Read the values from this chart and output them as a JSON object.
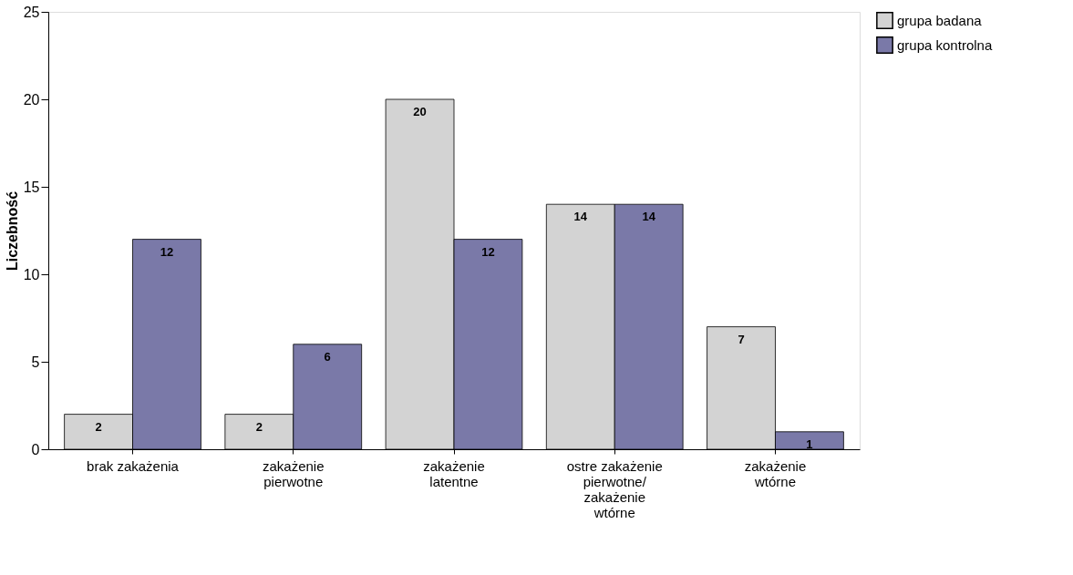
{
  "chart_data": {
    "type": "bar",
    "ylabel": "Liczebność",
    "categories": [
      "brak zakażenia",
      "zakażenie\npierwotne",
      "zakażenie\nlatentne",
      "ostre zakażenie\npierwotne/\nzakażenie\nwtórne",
      "zakażenie\nwtórne"
    ],
    "series": [
      {
        "name": "grupa badana",
        "color": "#d3d3d3",
        "values": [
          2,
          2,
          20,
          14,
          7
        ]
      },
      {
        "name": "grupa kontrolna",
        "color": "#7a79a8",
        "values": [
          12,
          6,
          12,
          14,
          1
        ]
      }
    ],
    "ylim": [
      0,
      25
    ],
    "yticks": [
      0,
      5,
      10,
      15,
      20,
      25
    ],
    "grid": false,
    "legend": "top right",
    "data_labels": true
  }
}
